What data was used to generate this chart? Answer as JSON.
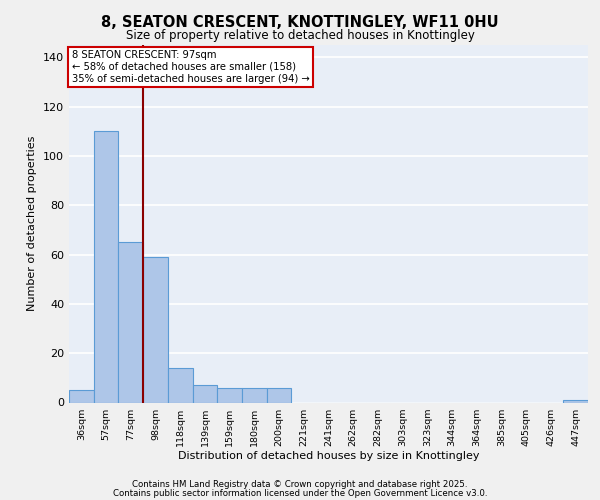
{
  "title": "8, SEATON CRESCENT, KNOTTINGLEY, WF11 0HU",
  "subtitle": "Size of property relative to detached houses in Knottingley",
  "xlabel": "Distribution of detached houses by size in Knottingley",
  "ylabel": "Number of detached properties",
  "categories": [
    "36sqm",
    "57sqm",
    "77sqm",
    "98sqm",
    "118sqm",
    "139sqm",
    "159sqm",
    "180sqm",
    "200sqm",
    "221sqm",
    "241sqm",
    "262sqm",
    "282sqm",
    "303sqm",
    "323sqm",
    "344sqm",
    "364sqm",
    "385sqm",
    "405sqm",
    "426sqm",
    "447sqm"
  ],
  "values": [
    5,
    110,
    65,
    59,
    14,
    7,
    6,
    6,
    6,
    0,
    0,
    0,
    0,
    0,
    0,
    0,
    0,
    0,
    0,
    0,
    1
  ],
  "bar_color": "#aec6e8",
  "bar_edge_color": "#5b9bd5",
  "vline_x": 2.5,
  "vline_color": "#8b0000",
  "annotation_text": "8 SEATON CRESCENT: 97sqm\n← 58% of detached houses are smaller (158)\n35% of semi-detached houses are larger (94) →",
  "annotation_box_color": "#ffffff",
  "annotation_box_edge": "#cc0000",
  "ylim": [
    0,
    145
  ],
  "yticks": [
    0,
    20,
    40,
    60,
    80,
    100,
    120,
    140
  ],
  "background_color": "#e8eef7",
  "grid_color": "#ffffff",
  "fig_bg_color": "#f0f0f0",
  "footer1": "Contains HM Land Registry data © Crown copyright and database right 2025.",
  "footer2": "Contains public sector information licensed under the Open Government Licence v3.0."
}
